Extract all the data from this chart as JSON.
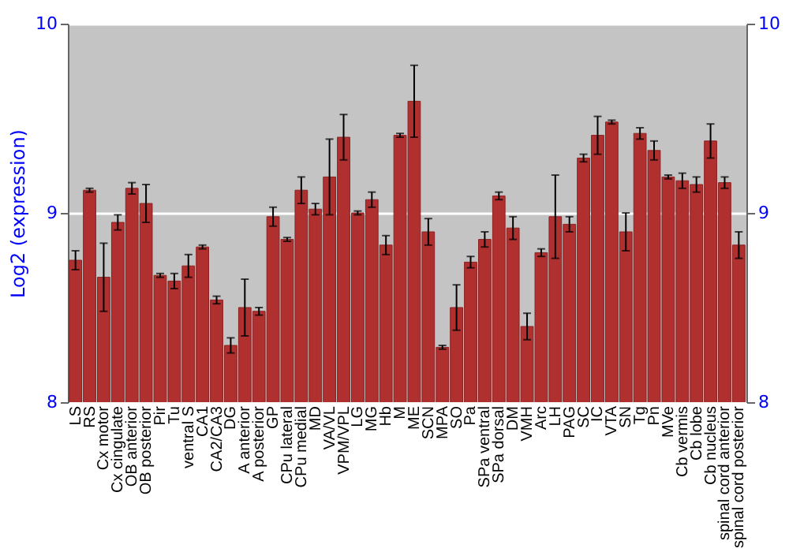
{
  "chart_data": {
    "type": "bar",
    "ylabel": "Log2 (expression)",
    "color": "#b03030",
    "categories": [
      "LS",
      "RS",
      "Cx motor",
      "Cx cingulate",
      "OB anterior",
      "OB posterior",
      "Pir",
      "Tu",
      "ventral S",
      "CA1",
      "CA2/CA3",
      "DG",
      "A anterior",
      "A posterior",
      "GP",
      "CPu lateral",
      "CPu medial",
      "MD",
      "VA/VL",
      "VPM/VPL",
      "LG",
      "MG",
      "Hb",
      "M",
      "ME",
      "SCN",
      "MPA",
      "SO",
      "Pa",
      "SPa ventral",
      "SPa dorsal",
      "DM",
      "VMH",
      "Arc",
      "LH",
      "PAG",
      "SC",
      "IC",
      "VTA",
      "SN",
      "Tg",
      "Pn",
      "MVe",
      "Cb vermis",
      "Cb lobe",
      "Cb nucleus",
      "spinal cord anterior",
      "spinal cord posterior"
    ],
    "values": [
      8.75,
      9.12,
      8.66,
      8.95,
      9.13,
      9.05,
      8.67,
      8.64,
      8.72,
      8.82,
      8.54,
      8.3,
      8.5,
      8.48,
      8.98,
      8.86,
      9.12,
      9.02,
      9.19,
      9.4,
      9.0,
      9.07,
      8.83,
      9.41,
      9.59,
      8.9,
      8.29,
      8.5,
      8.74,
      8.86,
      9.09,
      8.92,
      8.4,
      8.79,
      8.98,
      8.94,
      9.29,
      9.41,
      9.48,
      8.9,
      9.42,
      9.33,
      9.19,
      9.17,
      9.15,
      9.38,
      9.16,
      8.83
    ],
    "errors": [
      0.05,
      0.01,
      0.18,
      0.04,
      0.03,
      0.1,
      0.01,
      0.04,
      0.06,
      0.01,
      0.02,
      0.04,
      0.15,
      0.02,
      0.05,
      0.01,
      0.07,
      0.03,
      0.2,
      0.12,
      0.01,
      0.04,
      0.05,
      0.01,
      0.19,
      0.07,
      0.01,
      0.12,
      0.03,
      0.04,
      0.02,
      0.06,
      0.07,
      0.02,
      0.22,
      0.04,
      0.02,
      0.1,
      0.01,
      0.1,
      0.03,
      0.05,
      0.01,
      0.04,
      0.04,
      0.09,
      0.03,
      0.07
    ],
    "ylim": [
      8,
      10
    ],
    "yticks": [
      8,
      9,
      10
    ],
    "y2lim": [
      8,
      10
    ],
    "y2ticks": [
      8,
      9,
      10
    ],
    "grid": "y"
  }
}
